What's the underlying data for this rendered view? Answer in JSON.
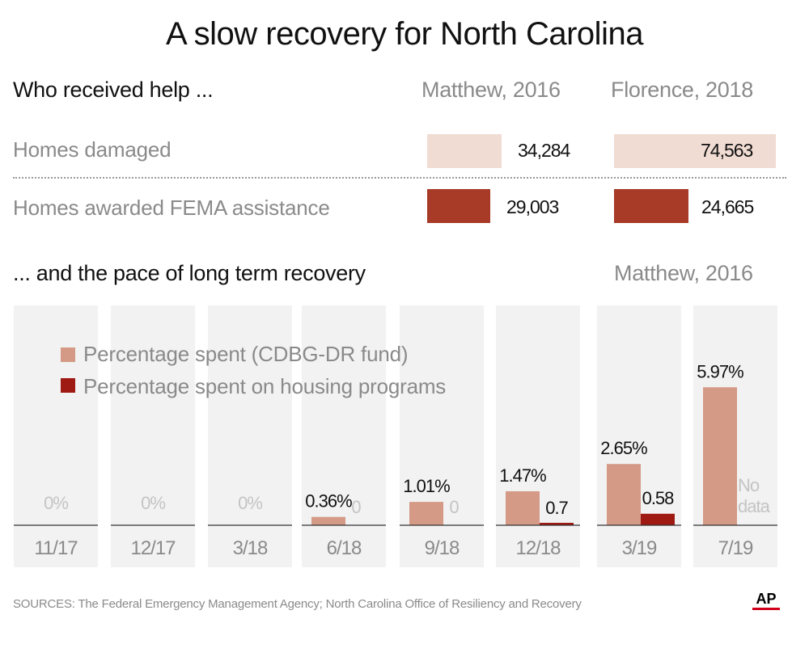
{
  "title": "A slow recovery for North Carolina",
  "help_section": {
    "heading": "Who received help ...",
    "columns": [
      "Matthew, 2016",
      "Florence, 2018"
    ],
    "rows": [
      {
        "label": "Homes damaged",
        "values": [
          "34,284",
          "74,563"
        ],
        "color": "#f1dcd3"
      },
      {
        "label": "Homes awarded FEMA assistance",
        "values": [
          "29,003",
          "24,665"
        ],
        "color": "#a73b27"
      }
    ]
  },
  "recovery_section": {
    "heading": "... and the pace of long term recovery",
    "storm_label": "Matthew, 2016"
  },
  "legend": [
    {
      "label": "Percentage spent (CDBG-DR fund)",
      "color": "#d49a86"
    },
    {
      "label": "Percentage spent on housing programs",
      "color": "#9e1a12"
    }
  ],
  "no_data_label": "No\ndata",
  "sources": "SOURCES: The Federal Emergency Management Agency; North  Carolina Office of Resiliency and Recovery",
  "ap_logo": "AP",
  "chart_data": [
    {
      "type": "bar",
      "title": "Who received help ...",
      "categories": [
        "Homes damaged",
        "Homes awarded FEMA assistance"
      ],
      "series": [
        {
          "name": "Matthew, 2016",
          "values": [
            34284,
            29003
          ]
        },
        {
          "name": "Florence, 2018",
          "values": [
            74563,
            24665
          ]
        }
      ]
    },
    {
      "type": "bar",
      "title": "... and the pace of long term recovery",
      "subtitle": "Matthew, 2016",
      "categories": [
        "11/17",
        "12/17",
        "3/18",
        "6/18",
        "9/18",
        "12/18",
        "3/19",
        "7/19"
      ],
      "series": [
        {
          "name": "Percentage spent (CDBG-DR fund)",
          "values": [
            0,
            0,
            0,
            0.36,
            1.01,
            1.47,
            2.65,
            5.97
          ],
          "labels": [
            "0%",
            "0%",
            "0%",
            "0.36%",
            "1.01%",
            "1.47%",
            "2.65%",
            "5.97%"
          ]
        },
        {
          "name": "Percentage spent on housing programs",
          "values": [
            null,
            null,
            null,
            0,
            0,
            0.7,
            0.58,
            null
          ],
          "labels": [
            "",
            "",
            "",
            "0",
            "0",
            "0.7",
            "0.58",
            ""
          ]
        }
      ],
      "ylim": [
        0,
        6.5
      ],
      "grid": false,
      "legend_position": "top-left"
    }
  ]
}
